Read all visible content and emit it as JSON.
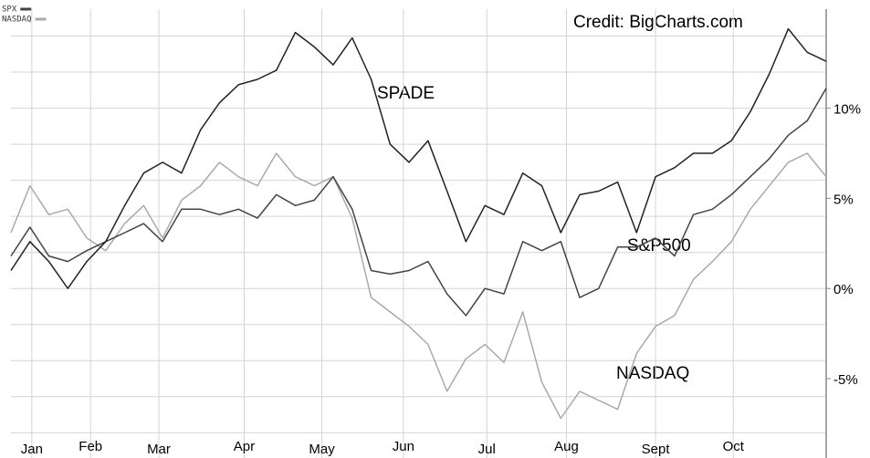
{
  "chart_data": {
    "type": "line",
    "credit": "Credit: BigCharts.com",
    "legend": [
      {
        "label": "SPX",
        "color": "#444444"
      },
      {
        "label": "NASDAQ",
        "color": "#aaaaaa"
      }
    ],
    "series": [
      {
        "name": "SPADE",
        "color": "#222222",
        "values": [
          1,
          2.6,
          1.5,
          0,
          1.5,
          2.6,
          4.6,
          6.4,
          7,
          6.4,
          8.8,
          10.3,
          11.3,
          11.6,
          12.1,
          14.2,
          13.4,
          12.4,
          13.9,
          11.6,
          8,
          7,
          8.2,
          5.4,
          2.6,
          4.6,
          4.1,
          6.4,
          5.7,
          3.1,
          5.2,
          5.4,
          5.9,
          3.1,
          6.2,
          6.7,
          7.5,
          7.5,
          8.2,
          9.8,
          11.9,
          14.4,
          13.1,
          12.6
        ]
      },
      {
        "name": "S&P500",
        "color": "#444444",
        "values": [
          1.8,
          3.4,
          1.8,
          1.5,
          2.1,
          2.6,
          3.1,
          3.6,
          2.6,
          4.4,
          4.4,
          4.1,
          4.4,
          3.9,
          5.2,
          4.6,
          4.9,
          6.2,
          4.4,
          1,
          0.8,
          1,
          1.5,
          -0.3,
          -1.5,
          0,
          -0.3,
          2.6,
          2.1,
          2.6,
          -0.5,
          0,
          2.3,
          2.3,
          2.8,
          1.8,
          4.1,
          4.4,
          5.2,
          6.2,
          7.2,
          8.5,
          9.3,
          11.1
        ]
      },
      {
        "name": "NASDAQ",
        "color": "#aaaaaa",
        "values": [
          3.1,
          5.7,
          4.1,
          4.4,
          2.8,
          2.1,
          3.6,
          4.6,
          2.8,
          4.9,
          5.7,
          7,
          6.2,
          5.7,
          7.5,
          6.2,
          5.7,
          6.2,
          3.9,
          -0.5,
          -1.3,
          -2.1,
          -3.1,
          -5.7,
          -3.9,
          -3.1,
          -4.1,
          -1.3,
          -5.2,
          -7.2,
          -5.7,
          -6.2,
          -6.7,
          -3.6,
          -2.1,
          -1.5,
          0.5,
          1.5,
          2.6,
          4.4,
          5.7,
          7,
          7.5,
          6.2
        ]
      }
    ],
    "xlim": [
      0,
      43
    ],
    "xticks": [
      {
        "value": 1.1,
        "label": "Jan"
      },
      {
        "value": 4.2,
        "label": "Feb"
      },
      {
        "value": 7.8,
        "label": "Mar"
      },
      {
        "value": 12.3,
        "label": "Apr"
      },
      {
        "value": 16.4,
        "label": "May"
      },
      {
        "value": 20.7,
        "label": "Jun"
      },
      {
        "value": 25.1,
        "label": "Jul"
      },
      {
        "value": 29.3,
        "label": "Aug"
      },
      {
        "value": 34.0,
        "label": "Sept"
      },
      {
        "value": 38.1,
        "label": "Oct"
      }
    ],
    "ylim": [
      -9.4,
      16
    ],
    "yticks": [
      {
        "value": -5,
        "label": "-5%"
      },
      {
        "value": 0,
        "label": "0%"
      },
      {
        "value": 5,
        "label": "5%"
      },
      {
        "value": 10,
        "label": "10%"
      }
    ],
    "ygrid": [
      -8,
      -6,
      -4,
      -2,
      0,
      2,
      4,
      6,
      8,
      10,
      12,
      14
    ],
    "grid": true
  }
}
